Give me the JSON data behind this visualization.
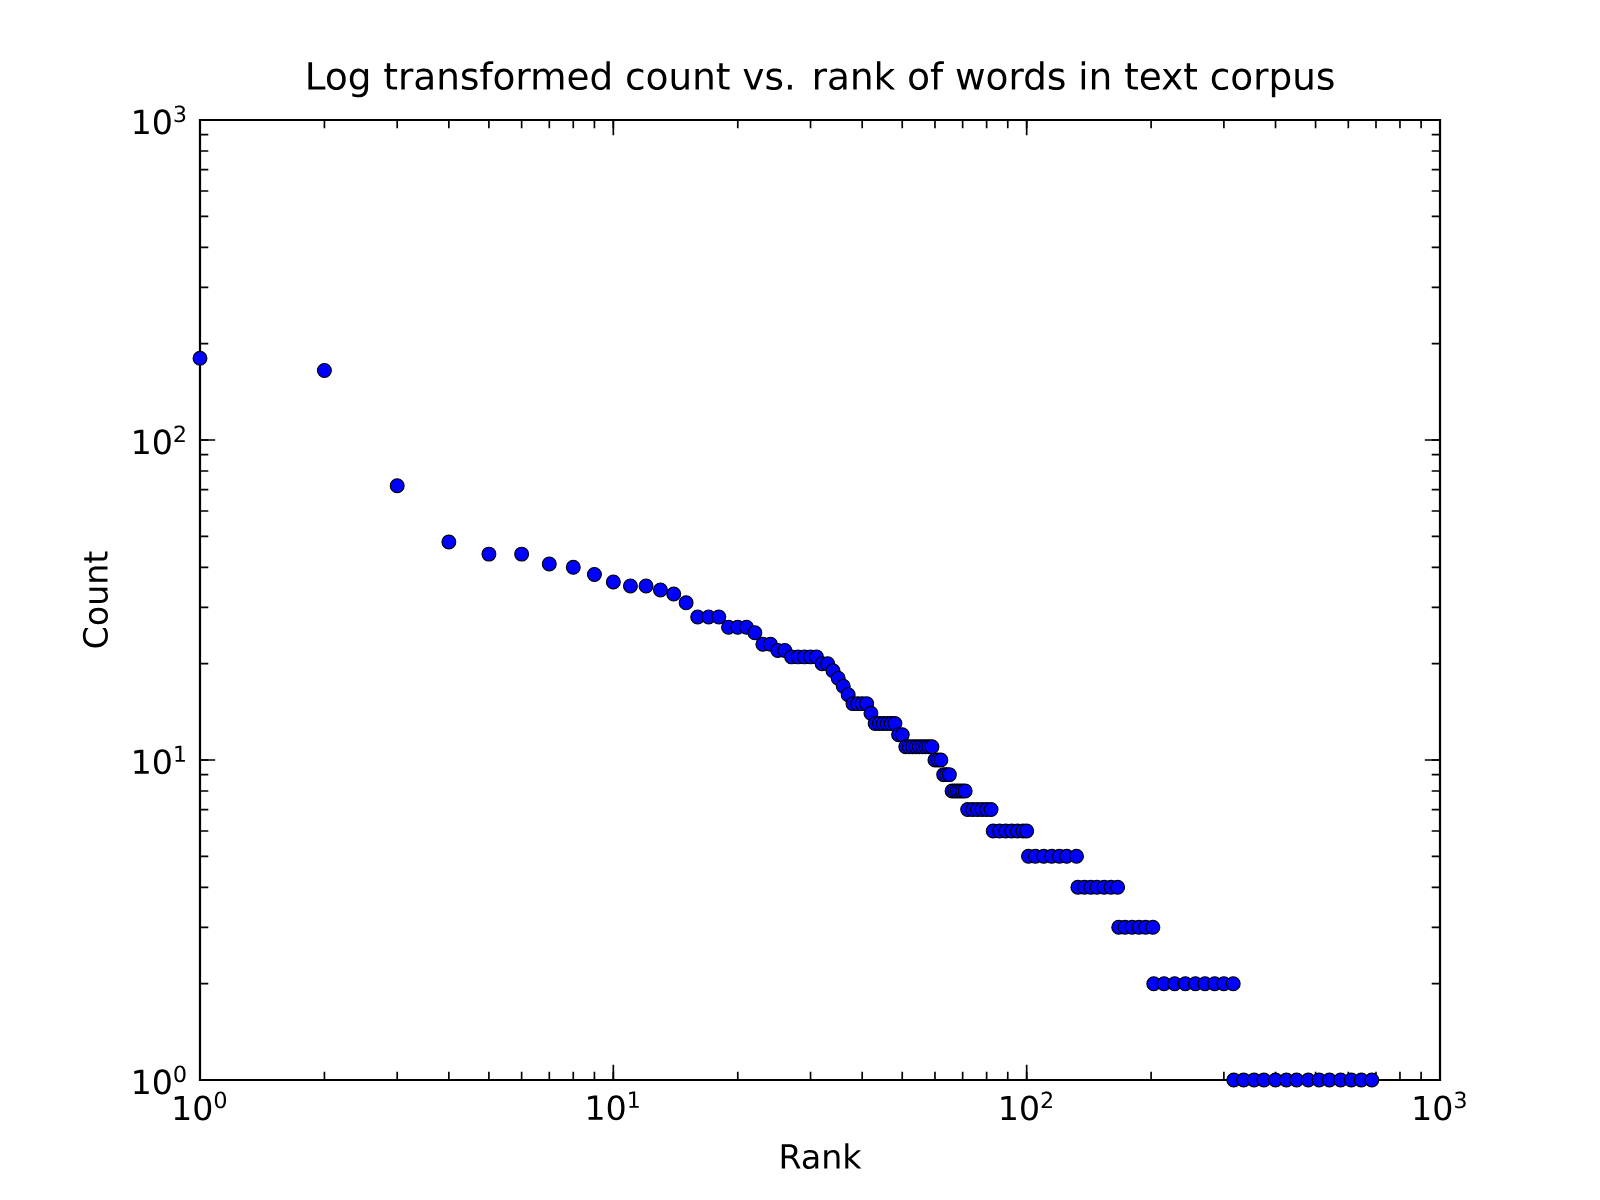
{
  "chart_data": {
    "type": "scatter",
    "title": "Log transformed count vs. rank of words in text corpus",
    "xlabel": "Rank",
    "ylabel": "Count",
    "log": "xy",
    "marker": "circle",
    "xlim": [
      1,
      1000
    ],
    "ylim": [
      1,
      1000
    ],
    "xticks": [
      {
        "value": 1,
        "label": "10$^{0}$"
      },
      {
        "value": 10,
        "label": "10$^{1}$"
      },
      {
        "value": 100,
        "label": "10$^{2}$"
      },
      {
        "value": 1000,
        "label": "10$^{3}$"
      }
    ],
    "yticks": [
      {
        "value": 1,
        "label": "10$^{0}$"
      },
      {
        "value": 10,
        "label": "10$^{1}$"
      },
      {
        "value": 100,
        "label": "10$^{2}$"
      },
      {
        "value": 1000,
        "label": "10$^{3}$"
      }
    ],
    "series": [
      {
        "color": "#0000ff",
        "x": [
          1,
          2,
          3,
          4,
          5,
          6,
          7,
          8,
          9,
          10,
          11,
          12,
          13,
          14,
          15,
          16,
          17,
          18,
          19,
          20,
          21,
          22,
          23,
          24,
          25,
          26,
          27,
          28,
          29,
          30,
          31,
          32,
          33,
          34,
          35,
          36,
          37,
          38,
          39,
          40,
          41,
          42,
          43,
          44,
          45,
          46,
          47,
          48,
          49,
          50,
          51,
          52,
          53,
          54,
          55,
          56,
          57,
          58,
          59,
          60,
          61,
          62,
          63,
          64,
          65,
          66,
          67,
          68,
          69,
          70,
          71,
          72,
          74,
          76,
          78,
          80,
          82,
          83,
          86,
          89,
          92,
          95,
          98,
          100,
          101,
          105,
          110,
          115,
          120,
          125,
          132,
          133,
          138,
          143,
          148,
          154,
          160,
          166,
          167,
          173,
          180,
          187,
          194,
          202,
          203,
          215,
          228,
          242,
          256,
          270,
          285,
          300,
          316,
          317,
          335,
          355,
          375,
          400,
          425,
          450,
          480,
          510,
          540,
          575,
          610,
          645,
          684
        ],
        "values": [
          180,
          165,
          72,
          48,
          44,
          44,
          41,
          40,
          38,
          36,
          35,
          35,
          34,
          33,
          31,
          28,
          28,
          28,
          26,
          26,
          26,
          25,
          23,
          23,
          22,
          22,
          21,
          21,
          21,
          21,
          21,
          20,
          20,
          19,
          18,
          17,
          16,
          15,
          15,
          15,
          15,
          14,
          13,
          13,
          13,
          13,
          13,
          13,
          12,
          12,
          11,
          11,
          11,
          11,
          11,
          11,
          11,
          11,
          11,
          10,
          10,
          10,
          9,
          9,
          9,
          8,
          8,
          8,
          8,
          8,
          8,
          7,
          7,
          7,
          7,
          7,
          7,
          6,
          6,
          6,
          6,
          6,
          6,
          6,
          5,
          5,
          5,
          5,
          5,
          5,
          5,
          4,
          4,
          4,
          4,
          4,
          4,
          4,
          3,
          3,
          3,
          3,
          3,
          3,
          2,
          2,
          2,
          2,
          2,
          2,
          2,
          2,
          2,
          1,
          1,
          1,
          1,
          1,
          1,
          1,
          1,
          1,
          1,
          1,
          1,
          1,
          1
        ]
      }
    ]
  }
}
